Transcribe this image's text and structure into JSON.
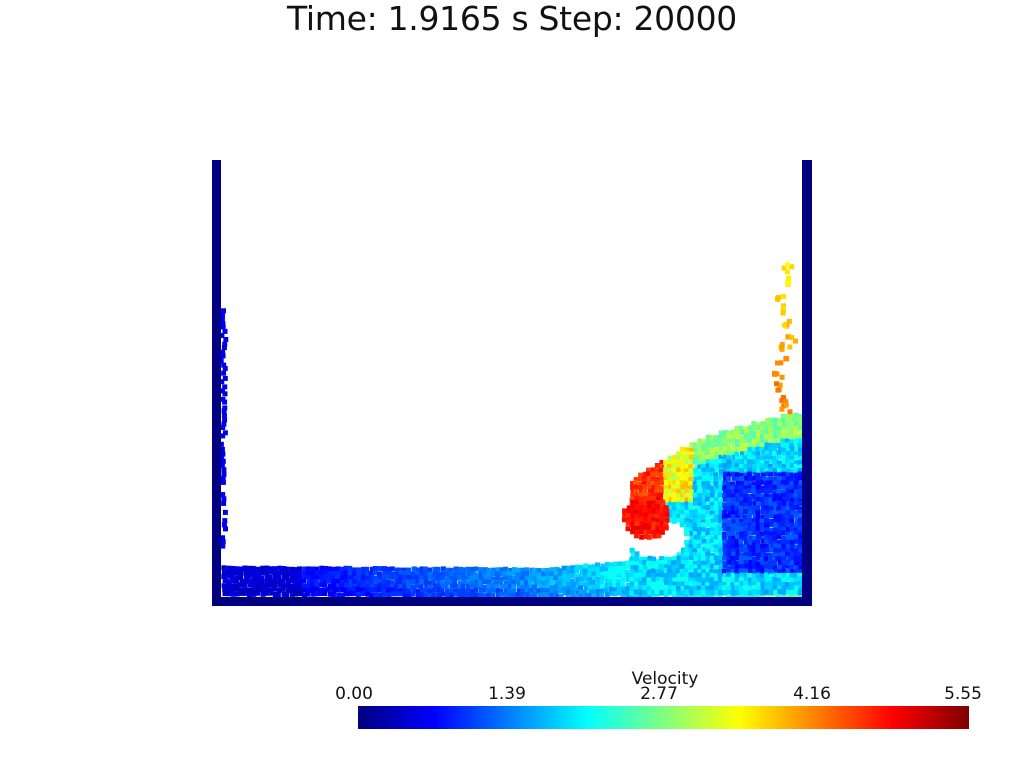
{
  "title": "Time: 1.9165 s  Step: 20000",
  "colorbar": {
    "label": "Velocity",
    "ticks": [
      "0.00",
      "1.39",
      "2.77",
      "4.16",
      "5.55"
    ],
    "min": 0.0,
    "max": 5.55,
    "colormap": [
      "#00007f",
      "#0000ff",
      "#0080ff",
      "#00ffff",
      "#80ff80",
      "#ffff00",
      "#ff8000",
      "#ff0000",
      "#7f0000"
    ]
  },
  "colors": {
    "tank_wall": "#000080",
    "background": "#ffffff"
  }
}
